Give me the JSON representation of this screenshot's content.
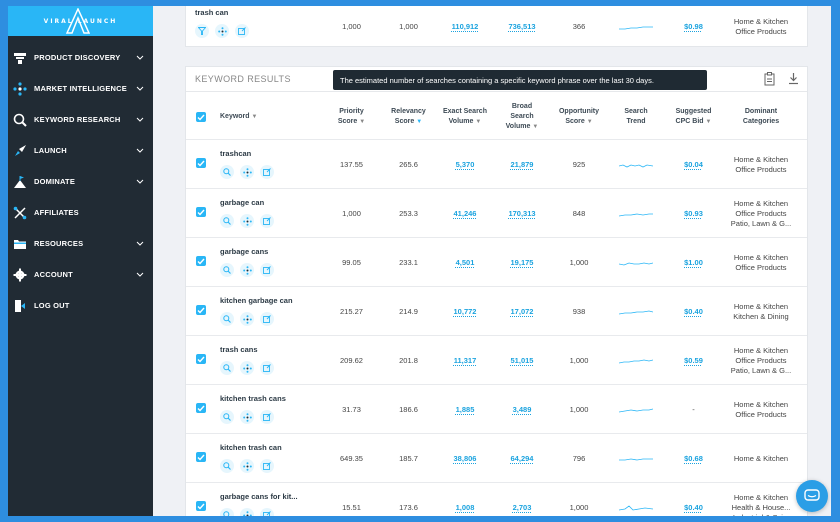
{
  "brand": {
    "name": "VIRAL LAUNCH"
  },
  "sidebar": {
    "items": [
      {
        "label": "PRODUCT DISCOVERY",
        "icon": "product-discovery-icon",
        "has_chevron": true
      },
      {
        "label": "MARKET INTELLIGENCE",
        "icon": "market-intelligence-icon",
        "has_chevron": true
      },
      {
        "label": "KEYWORD RESEARCH",
        "icon": "keyword-research-icon",
        "has_chevron": true
      },
      {
        "label": "LAUNCH",
        "icon": "rocket-icon",
        "has_chevron": true
      },
      {
        "label": "DOMINATE",
        "icon": "mountain-flag-icon",
        "has_chevron": true
      },
      {
        "label": "AFFILIATES",
        "icon": "affiliates-icon",
        "has_chevron": false
      },
      {
        "label": "RESOURCES",
        "icon": "folder-icon",
        "has_chevron": true
      },
      {
        "label": "ACCOUNT",
        "icon": "gear-icon",
        "has_chevron": true
      },
      {
        "label": "LOG OUT",
        "icon": "logout-icon",
        "has_chevron": false
      }
    ]
  },
  "top_row": {
    "keyword": "trash can",
    "priority": "1,000",
    "relevancy": "1,000",
    "exact": "110,912",
    "broad": "736,513",
    "opportunity": "366",
    "cpc": "$0.98",
    "categories": [
      "Home & Kitchen",
      "Office Products"
    ]
  },
  "results": {
    "title": "KEYWORD RESULTS",
    "tooltip": "The estimated number of searches containing a specific keyword phrase over the last 30 days.",
    "headers": {
      "keyword": "Keyword",
      "priority": [
        "Priority",
        "Score"
      ],
      "relevancy": [
        "Relevancy",
        "Score"
      ],
      "exact": [
        "Exact Search",
        "Volume"
      ],
      "broad": [
        "Broad",
        "Search",
        "Volume"
      ],
      "opportunity": [
        "Opportunity",
        "Score"
      ],
      "trend": [
        "Search",
        "Trend"
      ],
      "cpc": [
        "Suggested",
        "CPC Bid"
      ],
      "categories": [
        "Dominant",
        "Categories"
      ]
    },
    "rows": [
      {
        "keyword": "trashcan",
        "priority": "137.55",
        "relevancy": "265.6",
        "exact": "5,370",
        "broad": "21,879",
        "opportunity": "925",
        "cpc": "$0.04",
        "categories": [
          "Home & Kitchen",
          "Office Products"
        ]
      },
      {
        "keyword": "garbage can",
        "priority": "1,000",
        "relevancy": "253.3",
        "exact": "41,246",
        "broad": "170,313",
        "opportunity": "848",
        "cpc": "$0.93",
        "categories": [
          "Home & Kitchen",
          "Office Products",
          "Patio, Lawn & G..."
        ]
      },
      {
        "keyword": "garbage cans",
        "priority": "99.05",
        "relevancy": "233.1",
        "exact": "4,501",
        "broad": "19,175",
        "opportunity": "1,000",
        "cpc": "$1.00",
        "categories": [
          "Home & Kitchen",
          "Office Products"
        ]
      },
      {
        "keyword": "kitchen garbage can",
        "priority": "215.27",
        "relevancy": "214.9",
        "exact": "10,772",
        "broad": "17,072",
        "opportunity": "938",
        "cpc": "$0.40",
        "categories": [
          "Home & Kitchen",
          "Kitchen & Dining"
        ]
      },
      {
        "keyword": "trash cans",
        "priority": "209.62",
        "relevancy": "201.8",
        "exact": "11,317",
        "broad": "51,015",
        "opportunity": "1,000",
        "cpc": "$0.59",
        "categories": [
          "Home & Kitchen",
          "Office Products",
          "Patio, Lawn & G..."
        ]
      },
      {
        "keyword": "kitchen trash cans",
        "priority": "31.73",
        "relevancy": "186.6",
        "exact": "1,885",
        "broad": "3,489",
        "opportunity": "1,000",
        "cpc": "-",
        "categories": [
          "Home & Kitchen",
          "Office Products"
        ]
      },
      {
        "keyword": "kitchen trash can",
        "priority": "649.35",
        "relevancy": "185.7",
        "exact": "38,806",
        "broad": "64,294",
        "opportunity": "796",
        "cpc": "$0.68",
        "categories": [
          "Home & Kitchen"
        ]
      },
      {
        "keyword": "garbage cans for kit...",
        "priority": "15.51",
        "relevancy": "173.6",
        "exact": "1,008",
        "broad": "2,703",
        "opportunity": "1,000",
        "cpc": "$0.40",
        "categories": [
          "Home & Kitchen",
          "Health & House...",
          "Industrial & Sci..."
        ]
      }
    ]
  },
  "colors": {
    "accent": "#29b6f6",
    "sidebar_bg": "#212b34",
    "frame_border": "#2e8ee0",
    "tooltip_bg": "#1f2a33"
  }
}
